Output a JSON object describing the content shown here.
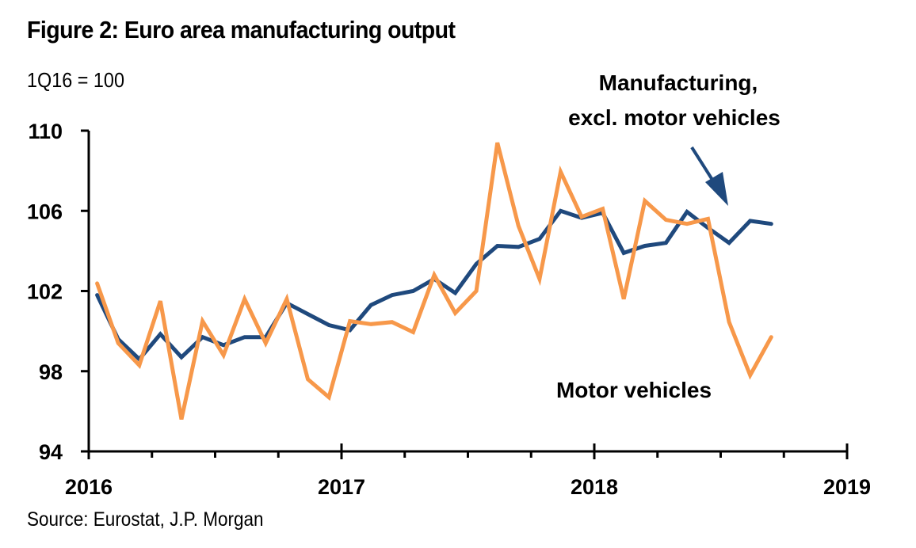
{
  "header": {
    "title": "Figure 2: Euro area manufacturing output",
    "subtitle": "1Q16 = 100"
  },
  "footer": {
    "source": "Source: Eurostat, J.P. Morgan"
  },
  "colors": {
    "manufacturing_excl_motor": "#1F497D",
    "motor_vehicles": "#F7984A",
    "axis": "#000000"
  },
  "chart_data": {
    "type": "line",
    "title": "Figure 2: Euro area manufacturing output",
    "subtitle": "1Q16 = 100",
    "xlabel": "",
    "ylabel": "",
    "ylim": [
      94,
      110
    ],
    "yticks": [
      94,
      98,
      102,
      106,
      110
    ],
    "ytick_labels": [
      "94",
      "98",
      "102",
      "106",
      "110"
    ],
    "xlim": [
      "2016-01",
      "2019-01"
    ],
    "xticks_major": [
      "2016",
      "2017",
      "2018",
      "2019"
    ],
    "xticks_minor": "quarterly",
    "grid": false,
    "legend": "none (inline annotations)",
    "x": [
      "2016-01",
      "2016-02",
      "2016-03",
      "2016-04",
      "2016-05",
      "2016-06",
      "2016-07",
      "2016-08",
      "2016-09",
      "2016-10",
      "2016-11",
      "2016-12",
      "2017-01",
      "2017-02",
      "2017-03",
      "2017-04",
      "2017-05",
      "2017-06",
      "2017-07",
      "2017-08",
      "2017-09",
      "2017-10",
      "2017-11",
      "2017-12",
      "2018-01",
      "2018-02",
      "2018-03",
      "2018-04",
      "2018-05",
      "2018-06",
      "2018-07",
      "2018-08",
      "2018-09"
    ],
    "series": [
      {
        "name": "Manufacturing, excl. motor vehicles",
        "color": "#1F497D",
        "values": [
          101.8,
          99.6,
          98.6,
          99.85,
          98.7,
          99.7,
          99.3,
          99.7,
          99.7,
          101.4,
          100.85,
          100.3,
          100.05,
          101.3,
          101.8,
          102.0,
          102.6,
          101.9,
          103.35,
          104.25,
          104.2,
          104.6,
          106.0,
          105.65,
          105.9,
          103.9,
          104.25,
          104.4,
          105.95,
          105.15,
          104.4,
          105.5,
          105.35
        ]
      },
      {
        "name": "Motor vehicles",
        "color": "#F7984A",
        "values": [
          102.38,
          99.4,
          98.3,
          101.5,
          95.6,
          100.5,
          98.8,
          101.6,
          99.4,
          101.6,
          97.6,
          96.7,
          100.5,
          100.35,
          100.45,
          99.95,
          102.8,
          100.9,
          102.0,
          109.4,
          105.25,
          102.6,
          107.95,
          105.7,
          106.1,
          101.6,
          106.5,
          105.55,
          105.35,
          105.6,
          100.45,
          97.8,
          99.7
        ]
      }
    ],
    "annotations": [
      {
        "text_lines": [
          "Manufacturing,",
          "excl. motor vehicles"
        ],
        "target_series": "Manufacturing, excl. motor vehicles",
        "arrow": true
      },
      {
        "text_lines": [
          "Motor vehicles"
        ],
        "target_series": "Motor vehicles",
        "arrow": false
      }
    ]
  }
}
